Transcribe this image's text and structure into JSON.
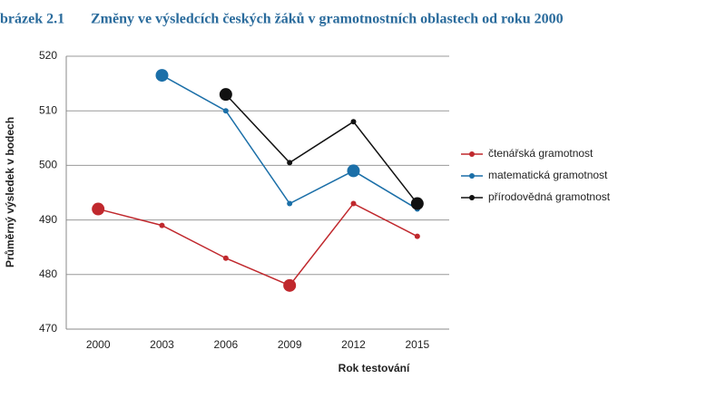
{
  "chart_data": {
    "type": "line",
    "figure_label": "brázek 2.1",
    "title": "Změny ve výsledcích českých žáků v gramotnostních oblastech od roku 2000",
    "x_label": "Rok testování",
    "y_label": "Průměrný výsledek v bodech",
    "categories": [
      "2000",
      "2003",
      "2006",
      "2009",
      "2012",
      "2015"
    ],
    "series": [
      {
        "name": "čtenářská gramotnost",
        "color": "#c0282d",
        "values": [
          492,
          489,
          483,
          478,
          493,
          487
        ],
        "highlighted": [
          true,
          false,
          false,
          true,
          false,
          false
        ]
      },
      {
        "name": "matematická gramotnost",
        "color": "#1b6fa8",
        "values": [
          null,
          516.5,
          510,
          493,
          499,
          492
        ],
        "highlighted": [
          false,
          true,
          false,
          false,
          true,
          false
        ]
      },
      {
        "name": "přírodovědná gramotnost",
        "color": "#111111",
        "values": [
          null,
          null,
          513,
          500.5,
          508,
          493
        ],
        "highlighted": [
          false,
          false,
          true,
          false,
          false,
          true
        ]
      }
    ],
    "ylim": [
      470,
      520
    ],
    "yticks": [
      470,
      480,
      490,
      500,
      510,
      520
    ],
    "grid": true,
    "legend": "right"
  }
}
